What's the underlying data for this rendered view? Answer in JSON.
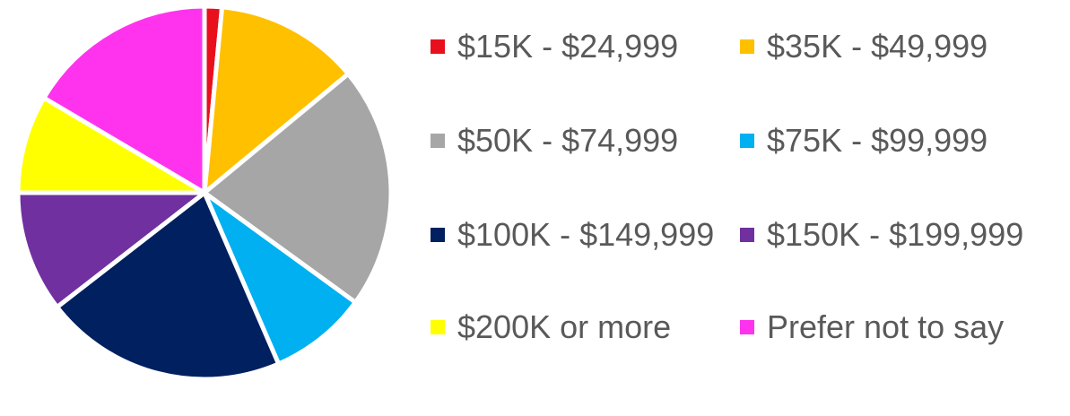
{
  "chart_data": {
    "type": "pie",
    "categories": [
      "$15K - $24,999",
      "$35K - $49,999",
      "$50K - $74,999",
      "$75K - $99,999",
      "$100K - $149,999",
      "$150K - $199,999",
      "$200K or more",
      "Prefer not to say"
    ],
    "values": [
      1.5,
      12.5,
      21.0,
      8.5,
      21.0,
      10.5,
      8.5,
      16.5
    ],
    "colors": [
      "#E8101C",
      "#FFC000",
      "#A6A6A6",
      "#00B0F0",
      "#002060",
      "#7030A0",
      "#FFFF00",
      "#FF33EE"
    ],
    "legend_position": "right",
    "title": ""
  }
}
